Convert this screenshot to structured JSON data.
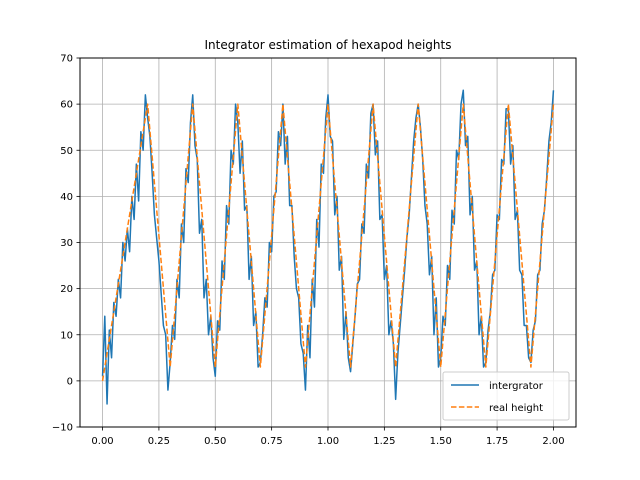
{
  "chart_data": {
    "type": "line",
    "title": "Integrator estimation of hexapod heights",
    "xlabel": "",
    "ylabel": "",
    "xlim": [
      -0.1,
      2.1
    ],
    "ylim": [
      -10,
      70
    ],
    "x_ticks": [
      0.0,
      0.25,
      0.5,
      0.75,
      1.0,
      1.25,
      1.5,
      1.75,
      2.0
    ],
    "x_tick_labels": [
      "0.00",
      "0.25",
      "0.50",
      "0.75",
      "1.00",
      "1.25",
      "1.50",
      "1.75",
      "2.00"
    ],
    "y_ticks": [
      -10,
      0,
      10,
      20,
      30,
      40,
      50,
      60,
      70
    ],
    "y_tick_labels": [
      "−10",
      "0",
      "10",
      "20",
      "30",
      "40",
      "50",
      "60",
      "70"
    ],
    "grid": true,
    "legend_position": "lower-right",
    "series": [
      {
        "name": "intergrator",
        "color": "#1f77b4",
        "style": "solid",
        "x": [
          0.0,
          0.01,
          0.02,
          0.03,
          0.04,
          0.05,
          0.06,
          0.07,
          0.08,
          0.09,
          0.1,
          0.11,
          0.12,
          0.13,
          0.14,
          0.15,
          0.16,
          0.17,
          0.18,
          0.19,
          0.2,
          0.21,
          0.22,
          0.23,
          0.24,
          0.25,
          0.26,
          0.27,
          0.28,
          0.29,
          0.3,
          0.31,
          0.32,
          0.33,
          0.34,
          0.35,
          0.36,
          0.37,
          0.38,
          0.39,
          0.4,
          0.41,
          0.42,
          0.43,
          0.44,
          0.45,
          0.46,
          0.47,
          0.48,
          0.49,
          0.5,
          0.51,
          0.52,
          0.53,
          0.54,
          0.55,
          0.56,
          0.57,
          0.58,
          0.59,
          0.6,
          0.61,
          0.62,
          0.63,
          0.64,
          0.65,
          0.66,
          0.67,
          0.68,
          0.69,
          0.7,
          0.71,
          0.72,
          0.73,
          0.74,
          0.75,
          0.76,
          0.77,
          0.78,
          0.79,
          0.8,
          0.81,
          0.82,
          0.83,
          0.84,
          0.85,
          0.86,
          0.87,
          0.88,
          0.89,
          0.9,
          0.91,
          0.92,
          0.93,
          0.94,
          0.95,
          0.96,
          0.97,
          0.98,
          0.99,
          1.0,
          1.01,
          1.02,
          1.03,
          1.04,
          1.05,
          1.06,
          1.07,
          1.08,
          1.09,
          1.1,
          1.11,
          1.12,
          1.13,
          1.14,
          1.15,
          1.16,
          1.17,
          1.18,
          1.19,
          1.2,
          1.21,
          1.22,
          1.23,
          1.24,
          1.25,
          1.26,
          1.27,
          1.28,
          1.29,
          1.3,
          1.31,
          1.32,
          1.33,
          1.34,
          1.35,
          1.36,
          1.37,
          1.38,
          1.39,
          1.4,
          1.41,
          1.42,
          1.43,
          1.44,
          1.45,
          1.46,
          1.47,
          1.48,
          1.49,
          1.5,
          1.51,
          1.52,
          1.53,
          1.54,
          1.55,
          1.56,
          1.57,
          1.58,
          1.59,
          1.6,
          1.61,
          1.62,
          1.63,
          1.64,
          1.65,
          1.66,
          1.67,
          1.68,
          1.69,
          1.7,
          1.71,
          1.72,
          1.73,
          1.74,
          1.75,
          1.76,
          1.77,
          1.78,
          1.79,
          1.8,
          1.81,
          1.82,
          1.83,
          1.84,
          1.85,
          1.86,
          1.87,
          1.88,
          1.89,
          1.9,
          1.91,
          1.92,
          1.93,
          1.94,
          1.95,
          1.96,
          1.97,
          1.98,
          1.99,
          2.0
        ],
        "y": [
          1,
          14,
          -5,
          11,
          5,
          17,
          14,
          22,
          18,
          30,
          26,
          33,
          28,
          40,
          35,
          47,
          39,
          54,
          50,
          62,
          57,
          53,
          45,
          36,
          31,
          26,
          19,
          12,
          10,
          -2,
          4,
          12,
          9,
          22,
          18,
          34,
          30,
          46,
          43,
          56,
          62,
          51,
          48,
          32,
          35,
          18,
          22,
          10,
          14,
          5,
          1,
          13,
          11,
          26,
          22,
          38,
          34,
          50,
          47,
          60,
          56,
          45,
          52,
          37,
          38,
          22,
          27,
          12,
          15,
          3,
          4,
          10,
          18,
          16,
          30,
          28,
          40,
          41,
          54,
          51,
          60,
          47,
          53,
          38,
          38,
          27,
          20,
          18,
          8,
          6,
          -2,
          12,
          5,
          22,
          16,
          35,
          29,
          47,
          45,
          57,
          62,
          53,
          52,
          36,
          40,
          24,
          27,
          9,
          15,
          5,
          2,
          8,
          14,
          21,
          22,
          34,
          32,
          47,
          44,
          58,
          60,
          49,
          52,
          35,
          36,
          22,
          25,
          10,
          13,
          8,
          -4,
          6,
          12,
          18,
          24,
          31,
          36,
          44,
          52,
          57,
          60,
          55,
          48,
          38,
          34,
          23,
          27,
          10,
          18,
          3,
          5,
          14,
          12,
          25,
          22,
          37,
          34,
          50,
          48,
          60,
          63,
          51,
          53,
          36,
          40,
          24,
          26,
          10,
          14,
          3,
          4,
          11,
          15,
          23,
          24,
          36,
          35,
          48,
          47,
          59,
          59,
          47,
          51,
          35,
          37,
          24,
          23,
          12,
          12,
          5,
          4,
          11,
          13,
          23,
          24,
          34,
          37,
          44,
          52,
          56,
          63
        ]
      },
      {
        "name": "real height",
        "color": "#ff7f0e",
        "style": "dashed",
        "x": [
          0.0,
          0.2,
          0.3,
          0.4,
          0.5,
          0.6,
          0.7,
          0.8,
          0.9,
          1.0,
          1.1,
          1.2,
          1.3,
          1.4,
          1.5,
          1.6,
          1.7,
          1.8,
          1.9,
          2.0
        ],
        "y": [
          0,
          60,
          3,
          60,
          3,
          60,
          3,
          60,
          3,
          60,
          3,
          60,
          3,
          60,
          3,
          60,
          3,
          60,
          3,
          60
        ]
      }
    ]
  }
}
